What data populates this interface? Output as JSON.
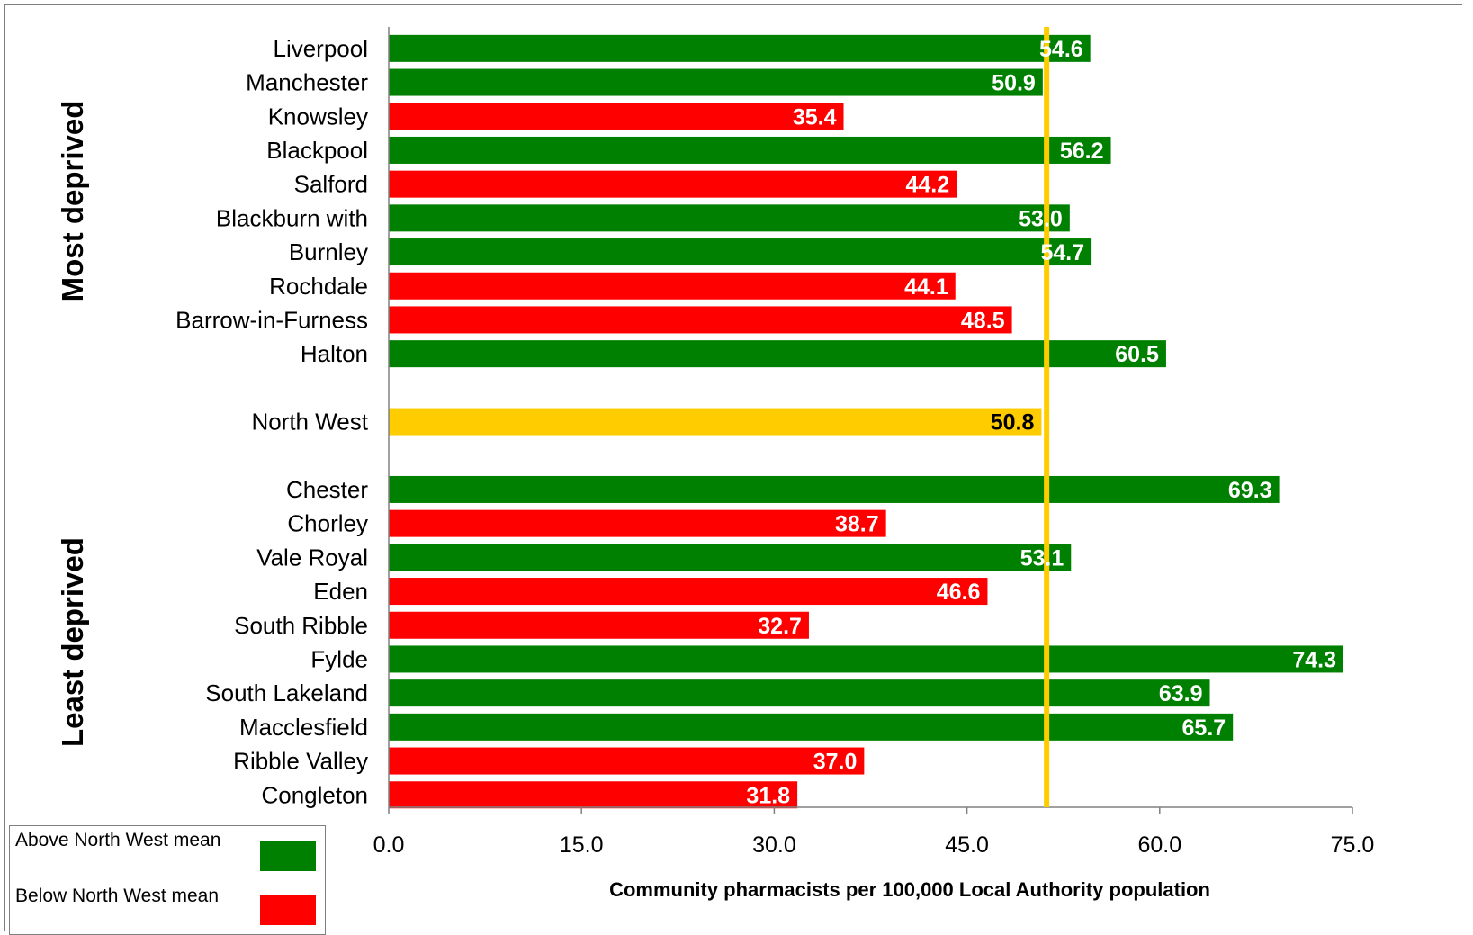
{
  "chart_data": {
    "type": "bar",
    "orientation": "horizontal",
    "title": "",
    "xlabel": "Community pharmacists per 100,000 Local Authority population",
    "ylabel": "",
    "xlim": [
      0,
      75
    ],
    "xticks": [
      "0.0",
      "15.0",
      "30.0",
      "45.0",
      "60.0",
      "75.0"
    ],
    "reference_line": {
      "value": 51.2,
      "color": "#ffcc00"
    },
    "groups": [
      {
        "label": "Most deprived",
        "categories": [
          "Liverpool",
          "Manchester",
          "Knowsley",
          "Blackpool",
          "Salford",
          "Blackburn with",
          "Burnley",
          "Rochdale",
          "Barrow-in-Furness",
          "Halton"
        ]
      },
      {
        "label": "Least deprived",
        "categories": [
          "Chester",
          "Chorley",
          "Vale Royal",
          "Eden",
          "South Ribble",
          "Fylde",
          "South Lakeland",
          "Macclesfield",
          "Ribble Valley",
          "Congleton"
        ]
      }
    ],
    "bars": [
      {
        "category": "Liverpool",
        "value": 54.6,
        "label": "54.6",
        "status": "above"
      },
      {
        "category": "Manchester",
        "value": 50.9,
        "label": "50.9",
        "status": "above"
      },
      {
        "category": "Knowsley",
        "value": 35.4,
        "label": "35.4",
        "status": "below"
      },
      {
        "category": "Blackpool",
        "value": 56.2,
        "label": "56.2",
        "status": "above"
      },
      {
        "category": "Salford",
        "value": 44.2,
        "label": "44.2",
        "status": "below"
      },
      {
        "category": "Blackburn with",
        "value": 53.0,
        "label": "53.0",
        "status": "above"
      },
      {
        "category": "Burnley",
        "value": 54.7,
        "label": "54.7",
        "status": "above"
      },
      {
        "category": "Rochdale",
        "value": 44.1,
        "label": "44.1",
        "status": "below"
      },
      {
        "category": "Barrow-in-Furness",
        "value": 48.5,
        "label": "48.5",
        "status": "below"
      },
      {
        "category": "Halton",
        "value": 60.5,
        "label": "60.5",
        "status": "above"
      },
      {
        "category": "",
        "value": null,
        "label": "",
        "status": "gap"
      },
      {
        "category": "North West",
        "value": 50.8,
        "label": "50.8",
        "status": "mean"
      },
      {
        "category": "",
        "value": null,
        "label": "",
        "status": "gap"
      },
      {
        "category": "Chester",
        "value": 69.3,
        "label": "69.3",
        "status": "above"
      },
      {
        "category": "Chorley",
        "value": 38.7,
        "label": "38.7",
        "status": "below"
      },
      {
        "category": "Vale Royal",
        "value": 53.1,
        "label": "53.1",
        "status": "above"
      },
      {
        "category": "Eden",
        "value": 46.6,
        "label": "46.6",
        "status": "below"
      },
      {
        "category": "South Ribble",
        "value": 32.7,
        "label": "32.7",
        "status": "below"
      },
      {
        "category": "Fylde",
        "value": 74.3,
        "label": "74.3",
        "status": "above"
      },
      {
        "category": "South Lakeland",
        "value": 63.9,
        "label": "63.9",
        "status": "above"
      },
      {
        "category": "Macclesfield",
        "value": 65.7,
        "label": "65.7",
        "status": "above"
      },
      {
        "category": "Ribble Valley",
        "value": 37.0,
        "label": "37.0",
        "status": "below"
      },
      {
        "category": "Congleton",
        "value": 31.8,
        "label": "31.8",
        "status": "below"
      }
    ],
    "legend": [
      {
        "name": "Above North West mean",
        "color": "#008000"
      },
      {
        "name": "Below North West mean",
        "color": "#ff0000"
      }
    ],
    "colors": {
      "above": "#008000",
      "below": "#ff0000",
      "mean": "#ffcc00",
      "above_label": "#ffffff",
      "below_label": "#ffffff",
      "mean_label": "#000000"
    },
    "grid": false,
    "legend_position": "bottom-left"
  }
}
